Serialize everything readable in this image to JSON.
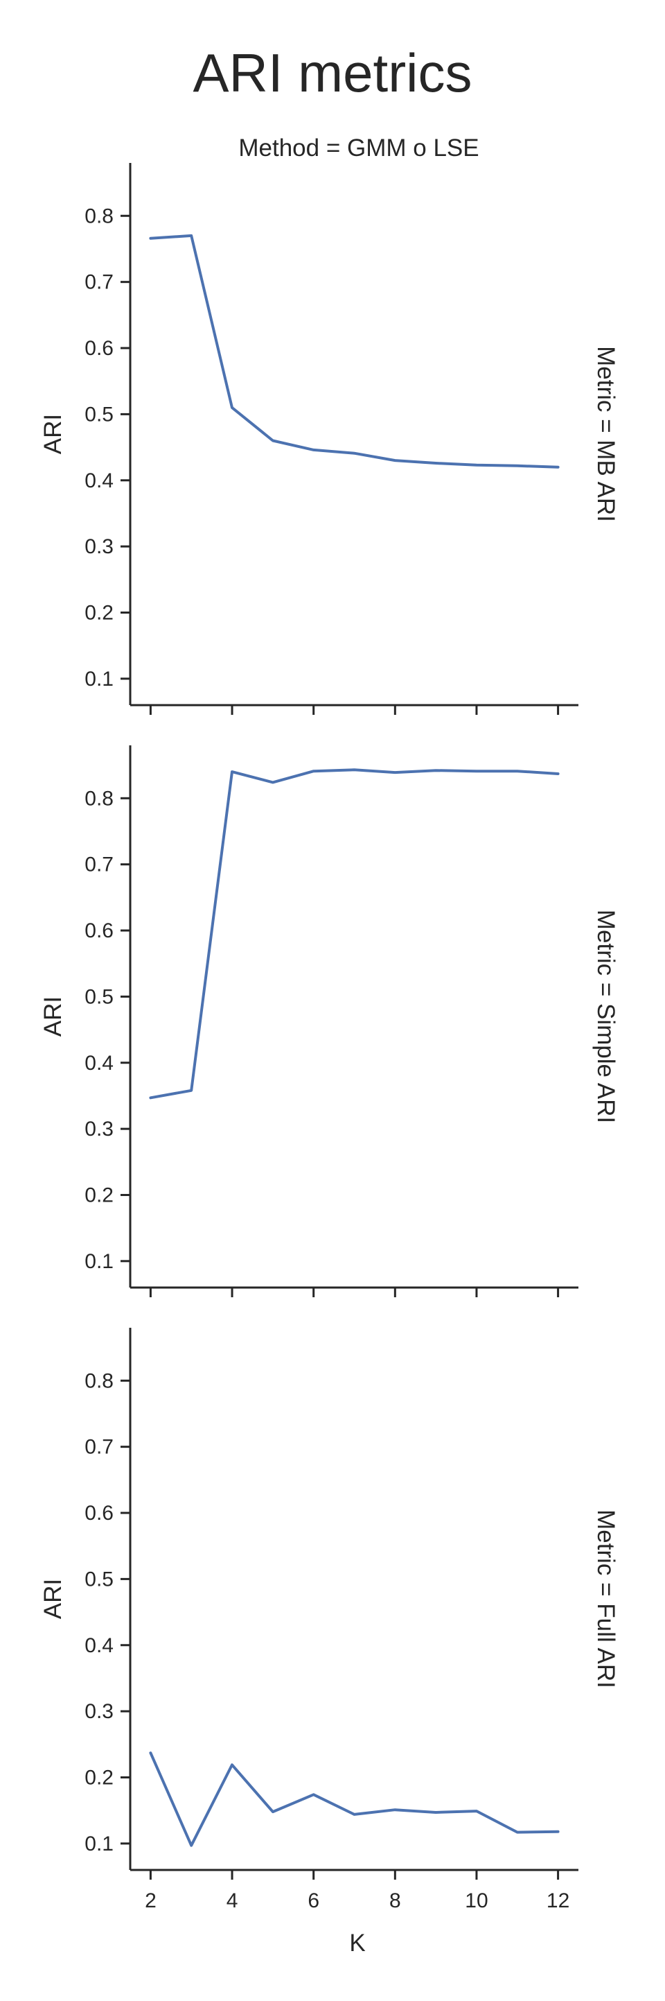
{
  "title": "ARI metrics",
  "column_title": "Method = GMM o LSE",
  "xlabel": "K",
  "ylabel": "ARI",
  "colors": {
    "series": "#4c72b0",
    "axis": "#262626"
  },
  "chart_data": {
    "type": "line",
    "title": "ARI metrics",
    "xlim": [
      1.5,
      12.5
    ],
    "ylim": [
      0.06,
      0.88
    ],
    "x_ticks": [
      2,
      4,
      6,
      8,
      10,
      12
    ],
    "y_ticks": [
      0.1,
      0.2,
      0.3,
      0.4,
      0.5,
      0.6,
      0.7,
      0.8
    ],
    "grid": false,
    "x": [
      2,
      3,
      4,
      5,
      6,
      7,
      8,
      9,
      10,
      11,
      12
    ],
    "panels": [
      {
        "title": "Metric = MB ARI",
        "ylabel": "ARI",
        "values": [
          0.766,
          0.77,
          0.51,
          0.46,
          0.446,
          0.441,
          0.43,
          0.426,
          0.423,
          0.422,
          0.42
        ]
      },
      {
        "title": "Metric = Simple ARI",
        "ylabel": "ARI",
        "values": [
          0.347,
          0.358,
          0.84,
          0.824,
          0.841,
          0.843,
          0.839,
          0.842,
          0.841,
          0.841,
          0.837
        ]
      },
      {
        "title": "Metric = Full ARI",
        "ylabel": "ARI",
        "values": [
          0.237,
          0.097,
          0.219,
          0.148,
          0.174,
          0.144,
          0.151,
          0.147,
          0.149,
          0.117,
          0.118
        ]
      }
    ]
  }
}
